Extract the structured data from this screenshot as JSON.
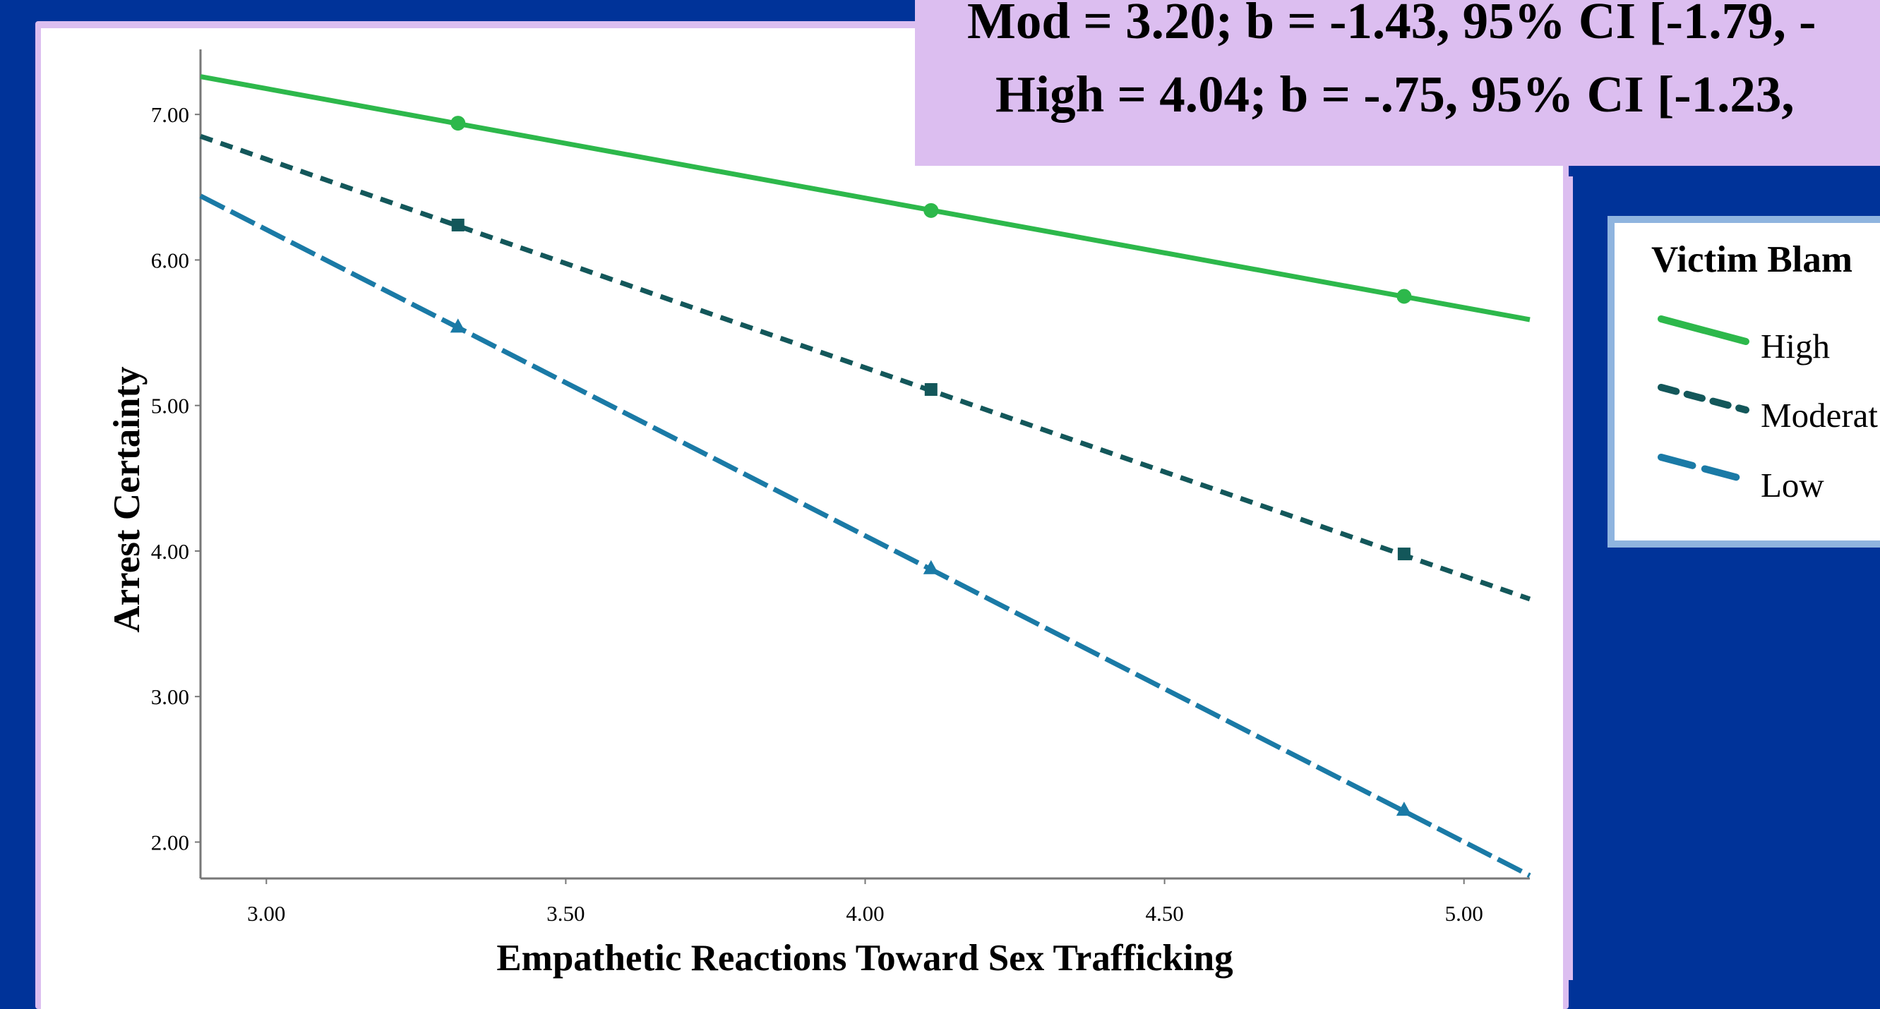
{
  "stats": {
    "line1": "Mod = 3.20; b = -1.43, 95% CI [-1.79, -",
    "line2": "High = 4.04; b = -.75, 95% CI [-1.23,"
  },
  "legend": {
    "title": "Victim Blam",
    "items": [
      {
        "label": "High",
        "color": "#2db84b",
        "style": "solid"
      },
      {
        "label": "Moderat",
        "color": "#13575a",
        "style": "short-dash"
      },
      {
        "label": "Low",
        "color": "#1a7aa6",
        "style": "long-dash"
      }
    ]
  },
  "colors": {
    "background": "#003399",
    "panel": "#dcbef0",
    "legend_border": "#8fb4df"
  },
  "chart_data": {
    "type": "line",
    "xlabel": "Empathetic Reactions Toward Sex Trafficking",
    "ylabel": "Arrest Certainty",
    "xlim": [
      2.89,
      5.11
    ],
    "ylim": [
      1.75,
      7.35
    ],
    "x_ticks": [
      "3.00",
      "3.50",
      "4.00",
      "4.50",
      "5.00"
    ],
    "y_ticks": [
      "2.00",
      "3.00",
      "4.00",
      "5.00",
      "6.00",
      "7.00"
    ],
    "grid": false,
    "series": [
      {
        "name": "High",
        "color": "#2db84b",
        "marker": "circle",
        "line_x": [
          2.89,
          5.11
        ],
        "line_y": [
          7.26,
          5.59
        ],
        "points": [
          {
            "x": 3.32,
            "y": 6.94
          },
          {
            "x": 4.11,
            "y": 6.34
          },
          {
            "x": 4.9,
            "y": 5.75
          }
        ]
      },
      {
        "name": "Moderat",
        "color": "#13575a",
        "marker": "square",
        "line_x": [
          2.89,
          5.11
        ],
        "line_y": [
          6.85,
          3.67
        ],
        "points": [
          {
            "x": 3.32,
            "y": 6.24
          },
          {
            "x": 4.11,
            "y": 5.11
          },
          {
            "x": 4.9,
            "y": 3.98
          }
        ]
      },
      {
        "name": "Low",
        "color": "#1a7aa6",
        "marker": "triangle",
        "line_x": [
          2.89,
          5.11
        ],
        "line_y": [
          6.44,
          1.77
        ],
        "points": [
          {
            "x": 3.32,
            "y": 5.54
          },
          {
            "x": 4.11,
            "y": 3.88
          },
          {
            "x": 4.9,
            "y": 2.22
          }
        ]
      }
    ]
  }
}
